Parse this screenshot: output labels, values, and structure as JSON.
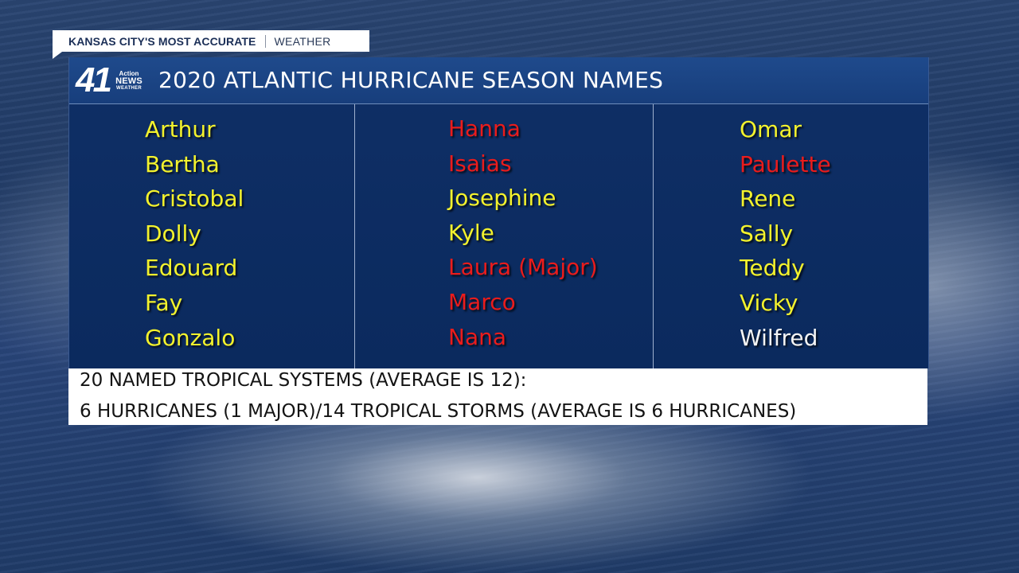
{
  "branding": {
    "station_tagline": "KANSAS CITY'S MOST ACCURATE",
    "section": "WEATHER",
    "logo_number": "41",
    "logo_line1": "Action",
    "logo_line2": "NEWS",
    "logo_line3": "WEATHER"
  },
  "graphic": {
    "title": "2020 ATLANTIC HURRICANE SEASON NAMES",
    "columns": [
      [
        {
          "name": "Arthur",
          "color": "#f3f22d"
        },
        {
          "name": "Bertha",
          "color": "#f3f22d"
        },
        {
          "name": "Cristobal",
          "color": "#f3f22d"
        },
        {
          "name": "Dolly",
          "color": "#f3f22d"
        },
        {
          "name": "Edouard",
          "color": "#f3f22d"
        },
        {
          "name": "Fay",
          "color": "#f3f22d"
        },
        {
          "name": "Gonzalo",
          "color": "#f3f22d"
        }
      ],
      [
        {
          "name": "Hanna",
          "color": "#ea1c1c"
        },
        {
          "name": "Isaias",
          "color": "#ea1c1c"
        },
        {
          "name": "Josephine",
          "color": "#f3f22d"
        },
        {
          "name": "Kyle",
          "color": "#f3f22d"
        },
        {
          "name": "Laura (Major)",
          "color": "#ea1c1c"
        },
        {
          "name": "Marco",
          "color": "#ea1c1c"
        },
        {
          "name": "Nana",
          "color": "#ea1c1c"
        }
      ],
      [
        {
          "name": "Omar",
          "color": "#f3f22d"
        },
        {
          "name": "Paulette",
          "color": "#ea1c1c"
        },
        {
          "name": "Rene",
          "color": "#f3f22d"
        },
        {
          "name": "Sally",
          "color": "#f3f22d"
        },
        {
          "name": "Teddy",
          "color": "#f3f22d"
        },
        {
          "name": "Vicky",
          "color": "#f3f22d"
        },
        {
          "name": "Wilfred",
          "color": "#f4f4f4"
        }
      ]
    ]
  },
  "footer": {
    "line1": "20 NAMED TROPICAL SYSTEMS (AVERAGE IS 12):",
    "line2": "6 HURRICANES (1 MAJOR)/14 TROPICAL STORMS (AVERAGE IS 6 HURRICANES)"
  }
}
